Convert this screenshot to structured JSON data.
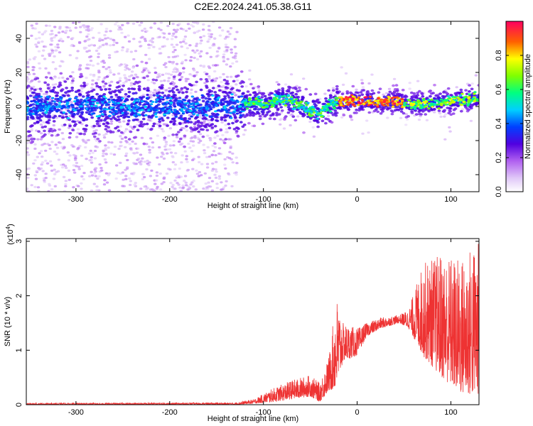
{
  "title": "C2E2.2024.241.05.38.G11",
  "chart_data": [
    {
      "type": "heatmap",
      "xlabel": "Height of straight line (km)",
      "ylabel": "Frequency (Hz)",
      "xlim": [
        -353,
        130
      ],
      "ylim": [
        -50,
        50
      ],
      "xticks": [
        -300,
        -200,
        -100,
        0,
        100
      ],
      "yticks": [
        -40,
        -20,
        0,
        20,
        40
      ],
      "colorbar": {
        "label": "Normalized spectral amplitude",
        "range": [
          0,
          1
        ],
        "ticks": [
          0.0,
          0.2,
          0.4,
          0.6,
          0.8
        ]
      },
      "center_track": [
        {
          "x": -353,
          "y": 0
        },
        {
          "x": -130,
          "y": 0
        },
        {
          "x": -115,
          "y": 2
        },
        {
          "x": -95,
          "y": 1
        },
        {
          "x": -80,
          "y": 5
        },
        {
          "x": -65,
          "y": 2
        },
        {
          "x": -50,
          "y": -2
        },
        {
          "x": -40,
          "y": -4
        },
        {
          "x": -30,
          "y": 1
        },
        {
          "x": -10,
          "y": 3
        },
        {
          "x": 30,
          "y": 3
        },
        {
          "x": 45,
          "y": 3
        },
        {
          "x": 55,
          "y": 1
        },
        {
          "x": 80,
          "y": 2
        },
        {
          "x": 130,
          "y": 5
        }
      ]
    },
    {
      "type": "line",
      "xlabel": "Height of straight line (km)",
      "ylabel": "SNR (10 * v/v)",
      "yscale_label": "(x10",
      "yscale_exp": "4",
      "xlim": [
        -353,
        130
      ],
      "ylim": [
        0,
        3.05
      ],
      "xticks": [
        -300,
        -200,
        -100,
        0,
        100
      ],
      "yticks": [
        0,
        1,
        2,
        3
      ],
      "color": "#ee3333",
      "envelope": [
        {
          "x": -353,
          "low": 0.0,
          "high": 0.03
        },
        {
          "x": -130,
          "low": 0.0,
          "high": 0.04
        },
        {
          "x": -110,
          "low": 0.02,
          "high": 0.1
        },
        {
          "x": -90,
          "low": 0.05,
          "high": 0.3
        },
        {
          "x": -70,
          "low": 0.1,
          "high": 0.45
        },
        {
          "x": -50,
          "low": 0.15,
          "high": 0.55
        },
        {
          "x": -40,
          "low": 0.05,
          "high": 0.4
        },
        {
          "x": -30,
          "low": 0.25,
          "high": 0.9
        },
        {
          "x": -22,
          "low": 0.3,
          "high": 2.0
        },
        {
          "x": -15,
          "low": 0.8,
          "high": 1.5
        },
        {
          "x": 0,
          "low": 0.9,
          "high": 1.4
        },
        {
          "x": 10,
          "low": 1.25,
          "high": 1.5
        },
        {
          "x": 25,
          "low": 1.4,
          "high": 1.6
        },
        {
          "x": 45,
          "low": 1.5,
          "high": 1.65
        },
        {
          "x": 55,
          "low": 1.4,
          "high": 1.75
        },
        {
          "x": 70,
          "low": 0.9,
          "high": 2.6
        },
        {
          "x": 90,
          "low": 0.5,
          "high": 2.8
        },
        {
          "x": 110,
          "low": 0.2,
          "high": 2.7
        },
        {
          "x": 125,
          "low": 0.15,
          "high": 3.0
        },
        {
          "x": 130,
          "low": 0.2,
          "high": 3.0
        }
      ]
    }
  ]
}
